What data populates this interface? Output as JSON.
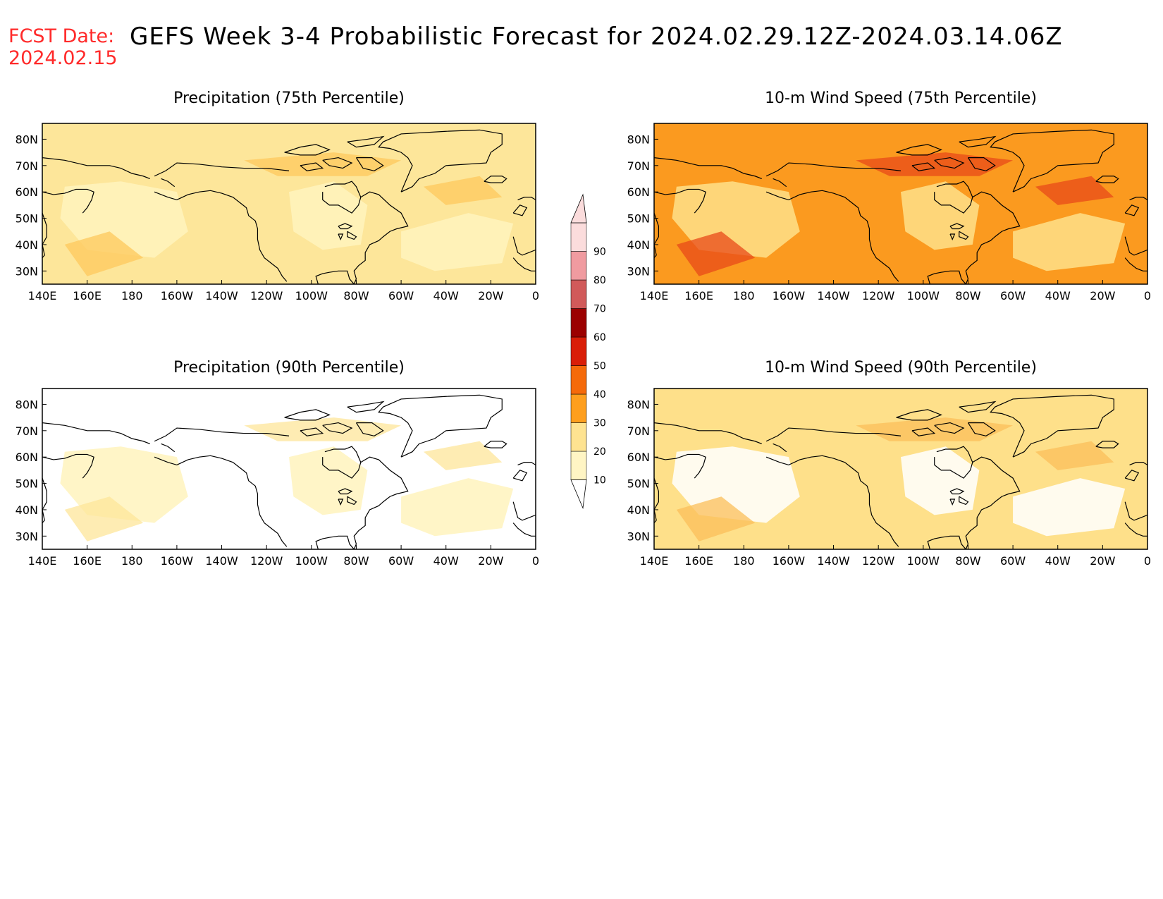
{
  "header": {
    "fcst_label": "FCST Date:",
    "fcst_date": "2024.02.15",
    "title": "GEFS Week 3-4 Probabilistic Forecast for 2024.02.29.12Z-2024.03.14.06Z"
  },
  "panels": [
    {
      "id": "precip-75",
      "title": "Precipitation (75th Percentile)",
      "fill": "#fde69a",
      "blob": "#fff3bd",
      "accent": "#fdc85c"
    },
    {
      "id": "wind-75",
      "title": "10-m Wind Speed (75th Percentile)",
      "fill": "#fb9a1f",
      "blob": "#fee08a",
      "accent": "#e8491a"
    },
    {
      "id": "precip-90",
      "title": "Precipitation (90th Percentile)",
      "fill": "#ffffff",
      "blob": "#fff3bd",
      "accent": "#fde69a"
    },
    {
      "id": "wind-90",
      "title": "10-m Wind Speed (90th Percentile)",
      "fill": "#fee08a",
      "blob": "#ffffff",
      "accent": "#fbbf5a"
    }
  ],
  "axes": {
    "lat_labels": [
      "80N",
      "70N",
      "60N",
      "50N",
      "40N",
      "30N"
    ],
    "lon_labels": [
      "140E",
      "160E",
      "180",
      "160W",
      "140W",
      "120W",
      "100W",
      "80W",
      "60W",
      "40W",
      "20W",
      "0"
    ]
  },
  "colorbar": {
    "levels": [
      "10",
      "20",
      "30",
      "40",
      "50",
      "60",
      "70",
      "80",
      "90"
    ],
    "colors": [
      "#fff5c4",
      "#fee391",
      "#fe9f1e",
      "#f56a0a",
      "#d91e08",
      "#9b0000",
      "#d15a5a",
      "#f09ba0",
      "#fbdcdc"
    ]
  }
}
